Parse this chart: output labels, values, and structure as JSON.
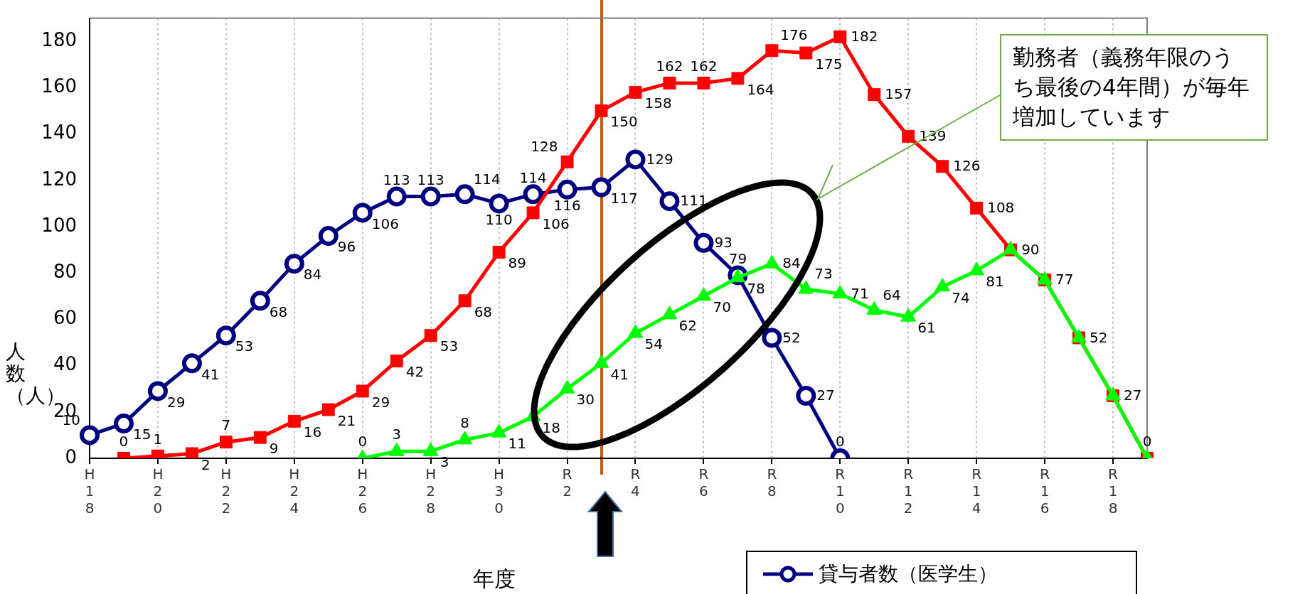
{
  "chart_data": {
    "type": "line",
    "xlabel": "年度",
    "ylabel": "人数（人）",
    "categories": [
      "H18",
      null,
      "H20",
      null,
      "H22",
      null,
      "H24",
      null,
      "H26",
      null,
      "H28",
      null,
      "H30",
      null,
      "R2",
      null,
      "R4",
      null,
      "R6",
      null,
      "R8",
      null,
      "R10",
      null,
      "R12",
      null,
      "R14",
      null,
      "R16",
      null,
      "R18",
      null
    ],
    "series": [
      {
        "name": "貸与者数（医学生）",
        "color": "#000080",
        "marker": "circle",
        "values": [
          10,
          15,
          29,
          41,
          53,
          68,
          84,
          96,
          106,
          113,
          113,
          114,
          110,
          114,
          116,
          117,
          129,
          111,
          93,
          79,
          52,
          27,
          0,
          null,
          null,
          null,
          null,
          null,
          null,
          null,
          null,
          null
        ]
      },
      {
        "color": "#ff0000",
        "marker": "square",
        "values": [
          null,
          0,
          1,
          2,
          7,
          9,
          16,
          21,
          29,
          42,
          53,
          68,
          89,
          106,
          128,
          150,
          158,
          162,
          162,
          164,
          176,
          175,
          182,
          157,
          139,
          126,
          108,
          90,
          77,
          52,
          27,
          0
        ]
      },
      {
        "color": "#00ff00",
        "marker": "triangle",
        "values": [
          null,
          null,
          null,
          null,
          null,
          null,
          null,
          null,
          0,
          3,
          3,
          8,
          11,
          18,
          30,
          41,
          54,
          62,
          70,
          78,
          84,
          73,
          71,
          64,
          61,
          74,
          81,
          90,
          77,
          52,
          27,
          0
        ],
        "value_labels": [
          null,
          null,
          null,
          null,
          null,
          null,
          null,
          null,
          "0",
          "3",
          "3",
          "8",
          "11",
          "18",
          "30",
          "41",
          "54",
          "62",
          "70",
          "78",
          "84",
          "73",
          "71",
          "64",
          "61",
          "74",
          "81",
          null,
          null,
          null,
          null,
          null
        ]
      }
    ],
    "ylim": [
      0,
      190
    ],
    "yticks": [
      0,
      20,
      40,
      60,
      80,
      100,
      120,
      140,
      160,
      180
    ],
    "grid": "x",
    "legend": "bottom right",
    "line_style": "solid",
    "data_labels": true,
    "annotations": [
      "勤務者（義務年限のうち最後の4年間）が毎年増加しています"
    ]
  }
}
